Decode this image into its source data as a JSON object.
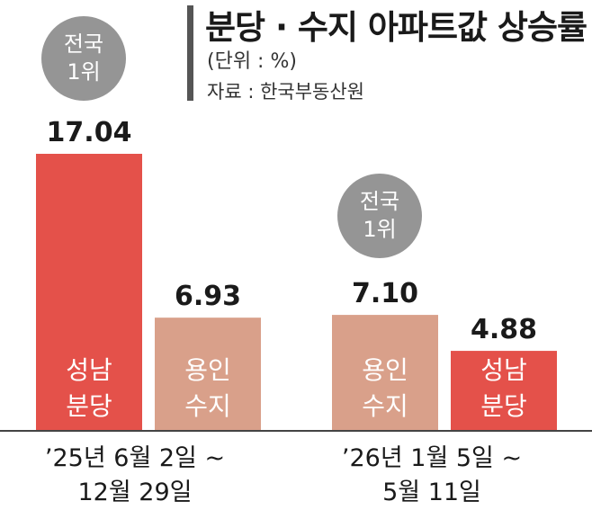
{
  "header": {
    "title": "분당 · 수지 아파트값 상승률",
    "unit": "(단위 : %)",
    "source": "자료 : 한국부동산원"
  },
  "badges": [
    {
      "line1": "전국",
      "line2": "1위"
    },
    {
      "line1": "전국",
      "line2": "1위"
    }
  ],
  "groups": [
    {
      "line1": "’25년 6월 2일 ~",
      "line2": "12월 29일"
    },
    {
      "line1": "’26년 1월 5일 ~",
      "line2": "5월 11일"
    }
  ],
  "colors": {
    "seongnam_bundang": "#e4514a",
    "yongin_suji": "#d9a08a",
    "badge": "#959595",
    "axis": "#444444"
  },
  "chart_data": {
    "type": "bar",
    "ylim": [
      0,
      17.04
    ],
    "bars": [
      {
        "group": 0,
        "line1": "성남",
        "line2": "분당",
        "value": 17.04,
        "label": "17.04",
        "color": "#e4514a"
      },
      {
        "group": 0,
        "line1": "용인",
        "line2": "수지",
        "value": 6.93,
        "label": "6.93",
        "color": "#d9a08a"
      },
      {
        "group": 1,
        "line1": "용인",
        "line2": "수지",
        "value": 7.1,
        "label": "7.10",
        "color": "#d9a08a"
      },
      {
        "group": 1,
        "line1": "성남",
        "line2": "분당",
        "value": 4.88,
        "label": "4.88",
        "color": "#e4514a"
      }
    ]
  }
}
